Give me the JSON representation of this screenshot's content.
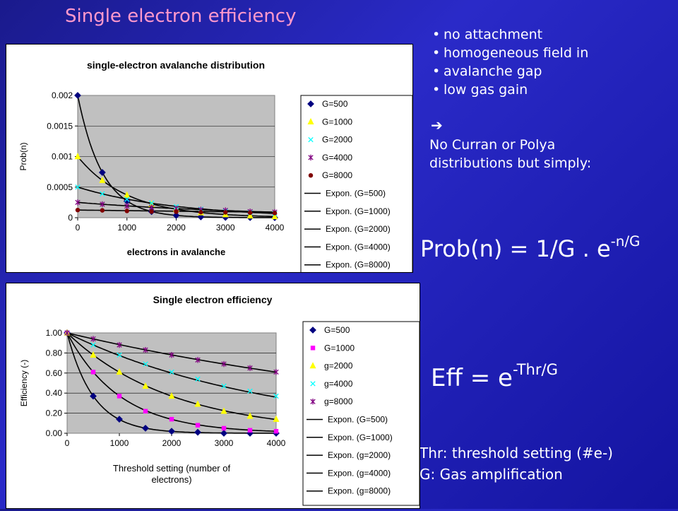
{
  "slide": {
    "title": "Single electron efficiency",
    "bullets": [
      "no attachment",
      "homogeneous field in",
      "low gas gain"
    ],
    "bullet_continuation": "avalanche gap",
    "arrow_symbol": "➔",
    "conclusion_lines": [
      "No Curran or Polya",
      "distributions but simply:"
    ],
    "formula_prob": {
      "base": "Prob(n) = 1/G . e",
      "exponent": "-n/G"
    },
    "formula_eff": {
      "base": "Eff = e",
      "exponent": "-Thr/G"
    },
    "notes": [
      "Thr: threshold setting (#e-)",
      "G: Gas amplification"
    ]
  },
  "chart_data": [
    {
      "type": "scatter",
      "title": "single-electron avalanche distribution",
      "xlabel": "electrons in avalanche",
      "ylabel": "Prob(n)",
      "xlim": [
        0,
        4000
      ],
      "ylim": [
        0,
        0.002
      ],
      "x_ticks": [
        "0",
        "1000",
        "2000",
        "3000",
        "4000"
      ],
      "y_ticks": [
        "0",
        "0.0005",
        "0.001",
        "0.0015",
        "0.002"
      ],
      "plot_background": "#c0c0c0",
      "grid": true,
      "legend_position": "right",
      "x": [
        0,
        500,
        1000,
        1500,
        2000,
        2500,
        3000,
        3500,
        4000
      ],
      "series": [
        {
          "name": "G=500",
          "marker": "diamond",
          "color": "#000080",
          "values": [
            0.002,
            0.00074,
            0.00027,
            0.0001,
            3.7e-05,
            1.3e-05,
            5e-06,
            2e-06,
            7e-07
          ]
        },
        {
          "name": "G=1000",
          "marker": "triangle",
          "color": "#ffff00",
          "values": [
            0.001,
            0.00061,
            0.00037,
            0.00022,
            0.00014,
            8.2e-05,
            5e-05,
            3e-05,
            1.8e-05
          ]
        },
        {
          "name": "G=2000",
          "marker": "x",
          "color": "#00ffff",
          "values": [
            0.0005,
            0.00039,
            0.0003,
            0.00024,
            0.00018,
            0.00014,
            0.00011,
            8.7e-05,
            6.8e-05
          ]
        },
        {
          "name": "G=4000",
          "marker": "star",
          "color": "#800080",
          "values": [
            0.00025,
            0.00022,
            0.00019,
            0.00017,
            0.00015,
            0.00013,
            0.00012,
            0.0001,
            9.2e-05
          ]
        },
        {
          "name": "G=8000",
          "marker": "circle",
          "color": "#800000",
          "values": [
            0.000125,
            0.00012,
            0.00011,
            0.0001,
            9.7e-05,
            9.1e-05,
            8.7e-05,
            8.1e-05,
            7.6e-05
          ]
        }
      ],
      "trendlines": [
        "Expon. (G=500)",
        "Expon. (G=1000)",
        "Expon. (G=2000)",
        "Expon. (G=4000)",
        "Expon. (G=8000)"
      ]
    },
    {
      "type": "scatter",
      "title": "Single electron efficiency",
      "xlabel_lines": [
        "Threshold setting (number of",
        "electrons)"
      ],
      "ylabel": "Efficiency (-)",
      "xlim": [
        0,
        4000
      ],
      "ylim": [
        0,
        1
      ],
      "x_ticks": [
        "0",
        "1000",
        "2000",
        "3000",
        "4000"
      ],
      "y_ticks": [
        "0.00",
        "0.20",
        "0.40",
        "0.60",
        "0.80",
        "1.00"
      ],
      "plot_background": "#c0c0c0",
      "grid": true,
      "legend_position": "right",
      "x": [
        0,
        500,
        1000,
        1500,
        2000,
        2500,
        3000,
        3500,
        4000
      ],
      "series": [
        {
          "name": "G=500",
          "marker": "diamond",
          "color": "#000080",
          "values": [
            1.0,
            0.37,
            0.14,
            0.05,
            0.02,
            0.01,
            0.0,
            0.0,
            0.0
          ]
        },
        {
          "name": "G=1000",
          "marker": "square",
          "color": "#ff00ff",
          "values": [
            1.0,
            0.61,
            0.37,
            0.22,
            0.14,
            0.08,
            0.05,
            0.03,
            0.02
          ]
        },
        {
          "name": "g=2000",
          "marker": "triangle",
          "color": "#ffff00",
          "values": [
            1.0,
            0.78,
            0.61,
            0.47,
            0.37,
            0.29,
            0.22,
            0.17,
            0.14
          ]
        },
        {
          "name": "g=4000",
          "marker": "x",
          "color": "#00ffff",
          "values": [
            1.0,
            0.88,
            0.78,
            0.69,
            0.61,
            0.54,
            0.47,
            0.42,
            0.37
          ]
        },
        {
          "name": "g=8000",
          "marker": "star",
          "color": "#800080",
          "values": [
            1.0,
            0.94,
            0.88,
            0.83,
            0.78,
            0.73,
            0.69,
            0.65,
            0.61
          ]
        }
      ],
      "trendlines": [
        "Expon. (G=500)",
        "Expon. (G=1000)",
        "Expon. (g=2000)",
        "Expon. (g=4000)",
        "Expon. (g=8000)"
      ]
    }
  ]
}
